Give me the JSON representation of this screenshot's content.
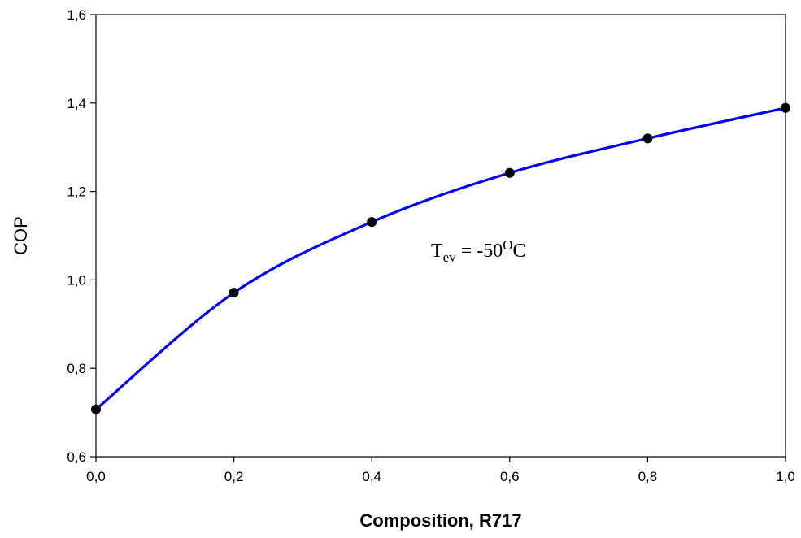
{
  "chart_data": {
    "type": "line",
    "xlabel": "Composition, R717",
    "ylabel": "COP",
    "annotation": {
      "base": "T",
      "sub": "ev",
      "value": " = -50",
      "sup": "O",
      "unit": "C"
    },
    "x": [
      0,
      0.2,
      0.4,
      0.6,
      0.8,
      1.0
    ],
    "series": [
      {
        "color": "#0000ff",
        "marker_color": "#000000",
        "values": [
          0.707,
          0.971,
          1.131,
          1.242,
          1.32,
          1.389
        ]
      }
    ],
    "xlim": [
      0,
      1.0
    ],
    "ylim": [
      0.6,
      1.6
    ],
    "xticks": [
      {
        "value": 0,
        "label": "0,0"
      },
      {
        "value": 0.2,
        "label": "0,2"
      },
      {
        "value": 0.4,
        "label": "0,4"
      },
      {
        "value": 0.6,
        "label": "0,6"
      },
      {
        "value": 0.8,
        "label": "0,8"
      },
      {
        "value": 1.0,
        "label": "1,0"
      }
    ],
    "yticks": [
      {
        "value": 0.6,
        "label": "0,6"
      },
      {
        "value": 0.8,
        "label": "0,8"
      },
      {
        "value": 1.0,
        "label": "1,0"
      },
      {
        "value": 1.2,
        "label": "1,2"
      },
      {
        "value": 1.4,
        "label": "1,4"
      },
      {
        "value": 1.6,
        "label": "1,6"
      }
    ]
  }
}
